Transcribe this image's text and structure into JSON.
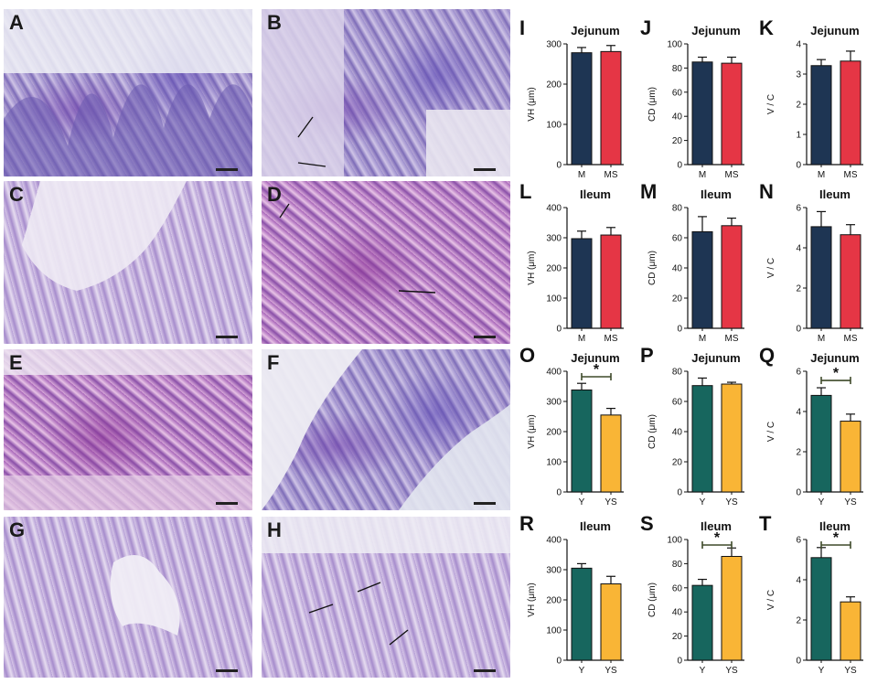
{
  "histology": [
    {
      "label": "A",
      "stain": "purple"
    },
    {
      "label": "B",
      "stain": "purple"
    },
    {
      "label": "C",
      "stain": "lilac"
    },
    {
      "label": "D",
      "stain": "pink"
    },
    {
      "label": "E",
      "stain": "pink"
    },
    {
      "label": "F",
      "stain": "purple"
    },
    {
      "label": "G",
      "stain": "lilac"
    },
    {
      "label": "H",
      "stain": "lilac"
    }
  ],
  "colors": {
    "M": "#1e3553",
    "MS": "#e53645",
    "Y": "#17665e",
    "YS": "#f9b536",
    "sig_line": "#3e4a2a"
  },
  "chart_data": [
    {
      "panel": "I",
      "type": "bar",
      "title": "Jejunum",
      "ylabel": "VH (μm)",
      "ylim": [
        0,
        300
      ],
      "yticks": [
        0,
        100,
        200,
        300
      ],
      "categories": [
        "M",
        "MS"
      ],
      "values": [
        278,
        281
      ],
      "errors": [
        13,
        15
      ],
      "significant": false
    },
    {
      "panel": "J",
      "type": "bar",
      "title": "Jejunum",
      "ylabel": "CD (μm)",
      "ylim": [
        0,
        100
      ],
      "yticks": [
        0,
        20,
        40,
        60,
        80,
        100
      ],
      "categories": [
        "M",
        "MS"
      ],
      "values": [
        85,
        84
      ],
      "errors": [
        4,
        5
      ],
      "significant": false
    },
    {
      "panel": "K",
      "type": "bar",
      "title": "Jejunum",
      "ylabel": "V / C",
      "ylim": [
        0,
        4
      ],
      "yticks": [
        0,
        1,
        2,
        3,
        4
      ],
      "categories": [
        "M",
        "MS"
      ],
      "values": [
        3.28,
        3.43
      ],
      "errors": [
        0.2,
        0.33
      ],
      "significant": false
    },
    {
      "panel": "L",
      "type": "bar",
      "title": "Ileum",
      "ylabel": "VH (μm)",
      "ylim": [
        0,
        400
      ],
      "yticks": [
        0,
        100,
        200,
        300,
        400
      ],
      "categories": [
        "M",
        "MS"
      ],
      "values": [
        297,
        309
      ],
      "errors": [
        25,
        25
      ],
      "significant": false
    },
    {
      "panel": "M",
      "type": "bar",
      "title": "Ileum",
      "ylabel": "CD (μm)",
      "ylim": [
        0,
        80
      ],
      "yticks": [
        0,
        20,
        40,
        60,
        80
      ],
      "categories": [
        "M",
        "MS"
      ],
      "values": [
        64,
        68
      ],
      "errors": [
        10,
        5
      ],
      "significant": false
    },
    {
      "panel": "N",
      "type": "bar",
      "title": "Ileum",
      "ylabel": "V / C",
      "ylim": [
        0,
        6
      ],
      "yticks": [
        0,
        2,
        4,
        6
      ],
      "categories": [
        "M",
        "MS"
      ],
      "values": [
        5.05,
        4.65
      ],
      "errors": [
        0.75,
        0.5
      ],
      "significant": false
    },
    {
      "panel": "O",
      "type": "bar",
      "title": "Jejunum",
      "ylabel": "VH (μm)",
      "ylim": [
        0,
        400
      ],
      "yticks": [
        0,
        100,
        200,
        300,
        400
      ],
      "categories": [
        "Y",
        "YS"
      ],
      "values": [
        338,
        255
      ],
      "errors": [
        22,
        22
      ],
      "significant": true,
      "sig_label": "*"
    },
    {
      "panel": "P",
      "type": "bar",
      "title": "Jejunum",
      "ylabel": "CD (μm)",
      "ylim": [
        0,
        80
      ],
      "yticks": [
        0,
        20,
        40,
        60,
        80
      ],
      "categories": [
        "Y",
        "YS"
      ],
      "values": [
        70.5,
        71.5
      ],
      "errors": [
        5,
        1.2
      ],
      "significant": false
    },
    {
      "panel": "Q",
      "type": "bar",
      "title": "Jejunum",
      "ylabel": "V / C",
      "ylim": [
        0,
        6
      ],
      "yticks": [
        0,
        2,
        4,
        6
      ],
      "categories": [
        "Y",
        "YS"
      ],
      "values": [
        4.8,
        3.52
      ],
      "errors": [
        0.38,
        0.35
      ],
      "significant": true,
      "sig_label": "*"
    },
    {
      "panel": "R",
      "type": "bar",
      "title": "Ileum",
      "ylabel": "VH (μm)",
      "ylim": [
        0,
        400
      ],
      "yticks": [
        0,
        100,
        200,
        300,
        400
      ],
      "categories": [
        "Y",
        "YS"
      ],
      "values": [
        305,
        253
      ],
      "errors": [
        15,
        25
      ],
      "significant": false
    },
    {
      "panel": "S",
      "type": "bar",
      "title": "Ileum",
      "ylabel": "CD (μm)",
      "ylim": [
        0,
        100
      ],
      "yticks": [
        0,
        20,
        40,
        60,
        80,
        100
      ],
      "categories": [
        "Y",
        "YS"
      ],
      "values": [
        62,
        86
      ],
      "errors": [
        5,
        7
      ],
      "significant": true,
      "sig_label": "*"
    },
    {
      "panel": "T",
      "type": "bar",
      "title": "Ileum",
      "ylabel": "V / C",
      "ylim": [
        0,
        6
      ],
      "yticks": [
        0,
        2,
        4,
        6
      ],
      "categories": [
        "Y",
        "YS"
      ],
      "values": [
        5.1,
        2.9
      ],
      "errors": [
        0.5,
        0.25
      ],
      "significant": true,
      "sig_label": "*"
    }
  ]
}
